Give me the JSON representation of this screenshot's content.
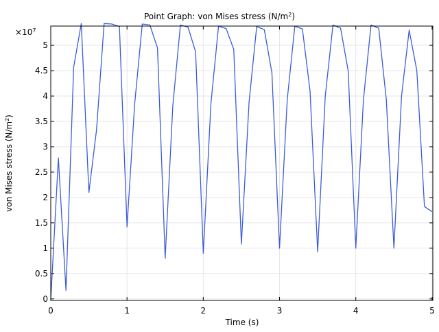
{
  "chart_data": {
    "type": "line",
    "title_prefix": "Point Graph: von Mises stress (N/m",
    "title_sup": "2",
    "title_suffix": ")",
    "xlabel": "Time (s)",
    "ylabel_prefix": "von Mises stress (N/m",
    "ylabel_sup": "2",
    "ylabel_suffix": ")",
    "multiplier_base": "×10",
    "multiplier_exp": "7",
    "xlim": [
      0,
      5.01
    ],
    "ylim": [
      -0.03,
      5.38
    ],
    "x_ticks": [
      0,
      1,
      2,
      3,
      4,
      5
    ],
    "y_ticks": [
      0,
      0.5,
      1,
      1.5,
      2,
      2.5,
      3,
      3.5,
      4,
      4.5,
      5
    ],
    "y_tick_labels": [
      "0",
      "0.5",
      "1",
      "1.5",
      "2",
      "2.5",
      "3",
      "3.5",
      "4",
      "4.5",
      "5"
    ],
    "grid": true,
    "line_color": "#3b5bdb",
    "series": [
      {
        "x": [
          0,
          0.1,
          0.2,
          0.3,
          0.4,
          0.5,
          0.6,
          0.7,
          0.8,
          0.9,
          1.0,
          1.1,
          1.2,
          1.3,
          1.4,
          1.5,
          1.6,
          1.7,
          1.8,
          1.9,
          2.0,
          2.1,
          2.2,
          2.3,
          2.4,
          2.5,
          2.6,
          2.7,
          2.8,
          2.9,
          3.0,
          3.1,
          3.2,
          3.3,
          3.4,
          3.5,
          3.6,
          3.7,
          3.8,
          3.9,
          4.0,
          4.1,
          4.2,
          4.3,
          4.4,
          4.5,
          4.6,
          4.7,
          4.8,
          4.9,
          5.0
        ],
        "y": [
          -0.03,
          2.78,
          0.17,
          4.57,
          5.43,
          2.1,
          3.33,
          5.43,
          5.42,
          5.37,
          1.42,
          3.84,
          5.42,
          5.4,
          4.95,
          0.8,
          3.8,
          5.4,
          5.36,
          4.87,
          0.9,
          3.85,
          5.38,
          5.33,
          4.92,
          1.08,
          3.88,
          5.37,
          5.31,
          4.46,
          1.0,
          3.92,
          5.38,
          5.32,
          4.1,
          0.93,
          4.0,
          5.4,
          5.34,
          4.5,
          1.0,
          3.92,
          5.4,
          5.34,
          3.93,
          1.0,
          4.0,
          5.3,
          4.5,
          1.82,
          1.72
        ]
      }
    ]
  }
}
